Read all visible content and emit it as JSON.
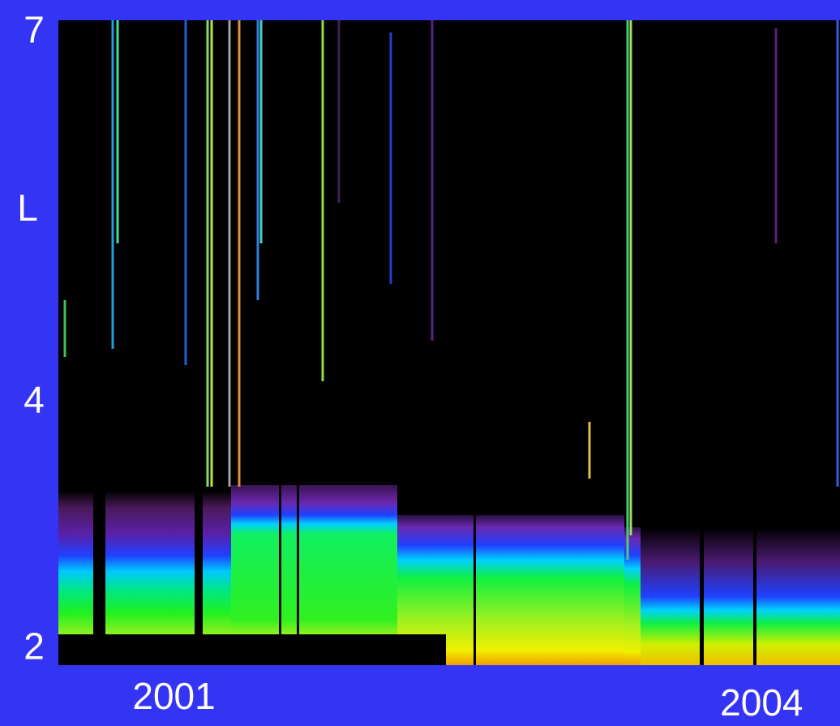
{
  "chart_data": {
    "type": "heatmap",
    "ylabel": "L",
    "xlim": [
      2000.41,
      2004.4
    ],
    "xticks": [
      2001,
      2004
    ],
    "ylim": [
      1.87,
      7.1
    ],
    "yticks": [
      2,
      4,
      7
    ]
  }
}
